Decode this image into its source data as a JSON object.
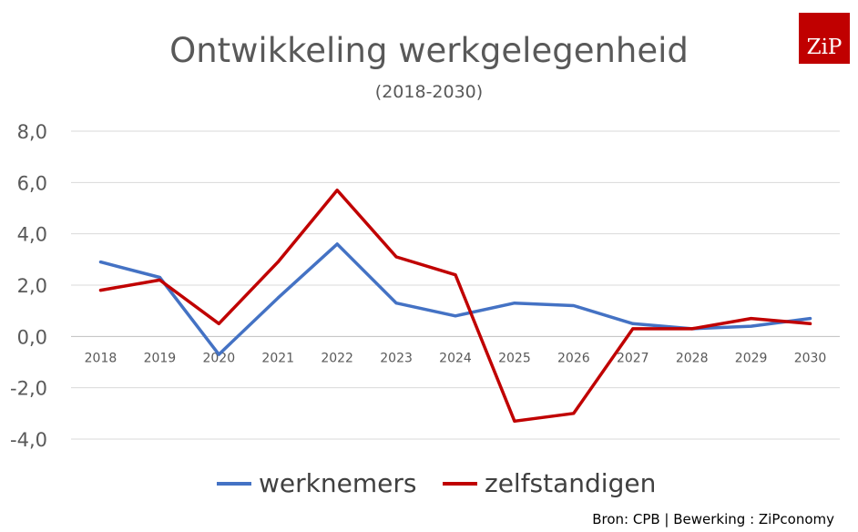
{
  "chart_data": {
    "type": "line",
    "title": "Ontwikkeling werkgelegenheid",
    "subtitle": "(2018-2030)",
    "xlabel": "",
    "ylabel": "",
    "categories": [
      "2018",
      "2019",
      "2020",
      "2021",
      "2022",
      "2023",
      "2024",
      "2025",
      "2026",
      "2027",
      "2028",
      "2029",
      "2030"
    ],
    "series": [
      {
        "name": "werknemers",
        "color": "#4472c4",
        "values": [
          2.9,
          2.3,
          -0.7,
          1.5,
          3.6,
          1.3,
          0.8,
          1.3,
          1.2,
          0.5,
          0.3,
          0.4,
          0.7
        ]
      },
      {
        "name": "zelfstandigen",
        "color": "#c00000",
        "values": [
          1.8,
          2.2,
          0.5,
          2.9,
          5.7,
          3.1,
          2.4,
          -3.3,
          -3.0,
          0.3,
          0.3,
          0.7,
          0.5
        ]
      }
    ],
    "ylim": [
      -4,
      8
    ],
    "yticks": [
      -4,
      -2,
      0,
      2,
      4,
      6,
      8
    ],
    "ytick_labels": [
      "-4,0",
      "-2,0",
      "0,0",
      "2,0",
      "4,0",
      "6,0",
      "8,0"
    ],
    "grid": true,
    "legend_position": "bottom"
  },
  "logo_text": "ZiP",
  "source": "Bron: CPB | Bewerking : ZiPconomy"
}
